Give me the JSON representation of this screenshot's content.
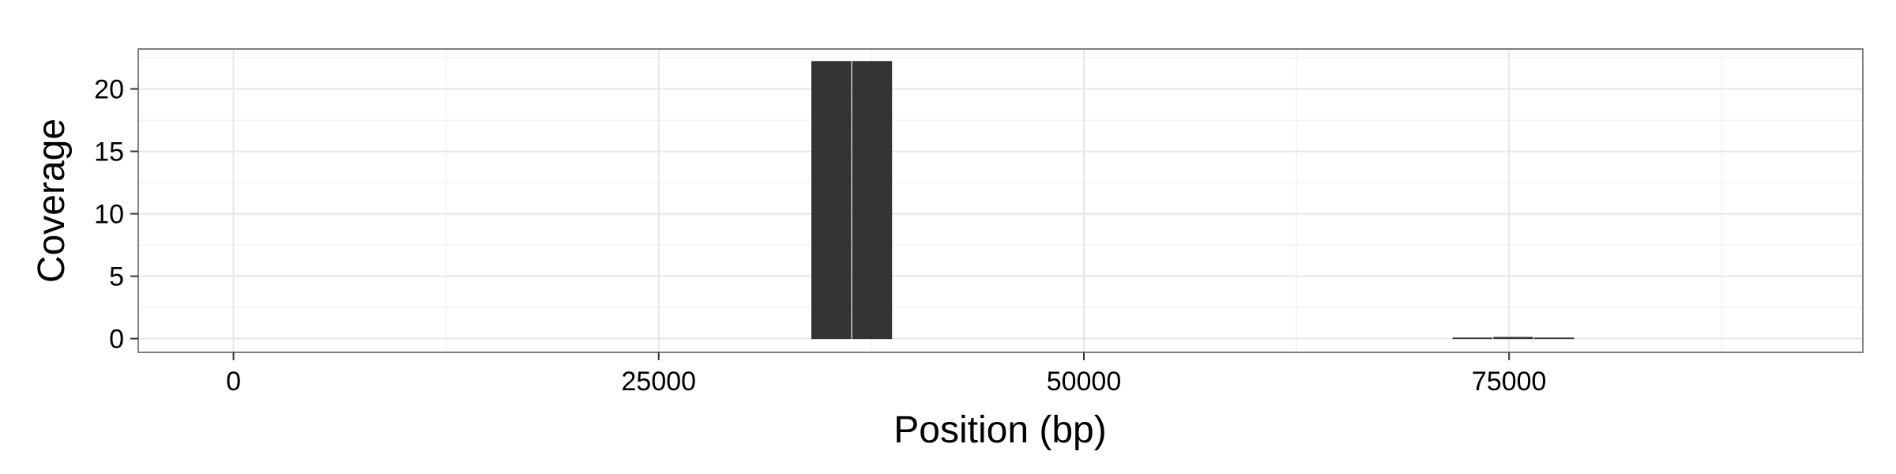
{
  "chart_data": {
    "type": "bar",
    "xlabel": "Position (bp)",
    "ylabel": "Coverage",
    "xlim": [
      -5600,
      95800
    ],
    "ylim": [
      -1.1,
      23.2
    ],
    "x_ticks": [
      0,
      25000,
      50000,
      75000
    ],
    "x_minor_ticks": [
      12500,
      37500,
      62500,
      87500
    ],
    "y_ticks": [
      0,
      5,
      10,
      15,
      20
    ],
    "y_minor_ticks": [
      2.5,
      7.5,
      12.5,
      17.5,
      22.5
    ],
    "grid": true,
    "colors": {
      "bar": "#333333",
      "panel_border": "#7f7f7f",
      "grid_major": "#e6e6e6",
      "grid_minor": "#f3f3f3"
    },
    "bar_width": 2300,
    "x": [
      35150,
      37550,
      72850,
      75250,
      77650
    ],
    "values": [
      22.2,
      22.2,
      0.05,
      0.1,
      0.05
    ]
  }
}
